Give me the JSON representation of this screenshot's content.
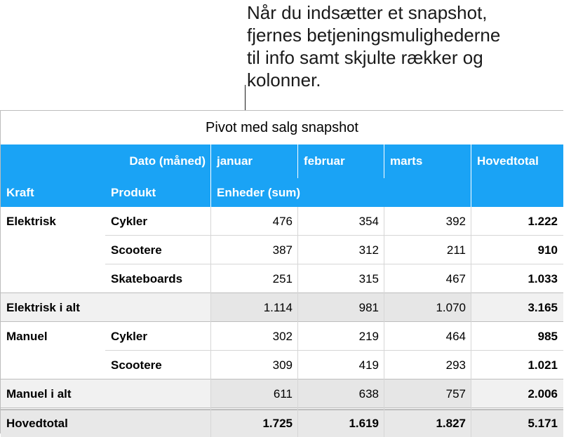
{
  "callout": {
    "lines": [
      "Når du indsætter et snapshot,",
      "fjernes betjeningsmulighederne",
      "til info samt skjulte rækker og",
      "kolonner."
    ]
  },
  "pivot": {
    "title": "Pivot med salg snapshot",
    "header_row_1": {
      "date_label": "Dato (måned)",
      "months": [
        "januar",
        "februar",
        "marts"
      ],
      "total_label": "Hovedtotal"
    },
    "header_row_2": {
      "kraft_label": "Kraft",
      "produkt_label": "Produkt",
      "units_label": "Enheder (sum)"
    },
    "rows": [
      {
        "kraft": "Elektrisk",
        "produkt": "Cykler",
        "values": [
          "476",
          "354",
          "392"
        ],
        "total": "1.222"
      },
      {
        "kraft": "",
        "produkt": "Scootere",
        "values": [
          "387",
          "312",
          "211"
        ],
        "total": "910"
      },
      {
        "kraft": "",
        "produkt": "Skateboards",
        "values": [
          "251",
          "315",
          "467"
        ],
        "total": "1.033"
      },
      {
        "kraft": "Elektrisk i alt",
        "produkt": "",
        "values": [
          "1.114",
          "981",
          "1.070"
        ],
        "total": "3.165",
        "subtotal": true
      },
      {
        "kraft": "Manuel",
        "produkt": "Cykler",
        "values": [
          "302",
          "219",
          "464"
        ],
        "total": "985"
      },
      {
        "kraft": "",
        "produkt": "Scootere",
        "values": [
          "309",
          "419",
          "293"
        ],
        "total": "1.021"
      },
      {
        "kraft": "Manuel i alt",
        "produkt": "",
        "values": [
          "611",
          "638",
          "757"
        ],
        "total": "2.006",
        "subtotal": true
      }
    ],
    "grand_total": {
      "label": "Hovedtotal",
      "values": [
        "1.725",
        "1.619",
        "1.827"
      ],
      "total": "5.171"
    },
    "colors": {
      "header_bg": "#1aa3f5",
      "subtotal_bg": "#f1f1f1",
      "grand_bg": "#e8e8e8"
    }
  }
}
